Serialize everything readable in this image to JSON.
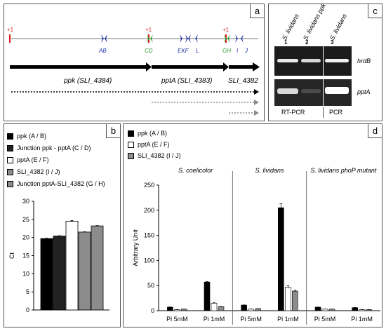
{
  "panels": {
    "a": "a",
    "b": "b",
    "c": "c",
    "d": "d"
  },
  "panel_a": {
    "tss_label": "+1",
    "primer_groups": [
      "AB",
      "CD",
      "EKF",
      "L",
      "GH",
      "I",
      "J"
    ],
    "genes": [
      "ppk (SLI_4384)",
      "pptA (SLI_4383)",
      "SLI_4382"
    ],
    "colors": {
      "tss": "#e21a1a",
      "primer_blue": "#1f2fa8",
      "primer_green": "#2ca02c",
      "arrow": "#000000",
      "transcript_black": "#000000",
      "transcript_gray": "#8c8c8c"
    }
  },
  "panel_c": {
    "col_labels": [
      "S. lividans",
      "S. lividans ppk mutant",
      "S. lividans"
    ],
    "lane_numbers": [
      "1",
      "2",
      "3"
    ],
    "row_labels": [
      "hrdB",
      "pptA"
    ],
    "bottom_labels": [
      "RT-PCR",
      "PCR"
    ]
  },
  "panel_b": {
    "legend": [
      {
        "label": "ppk (A / B)",
        "color": "#000000"
      },
      {
        "label": "Junction ppk - pptA (C / D)",
        "color": "#222222"
      },
      {
        "label": "pptA (E / F)",
        "color": "#ffffff"
      },
      {
        "label": "SLI_4382 (I / J)",
        "color": "#8c8c8c"
      },
      {
        "label": "Junction pptA-SLI_4382 (G / H)",
        "color": "#8c8c8c"
      }
    ],
    "chart_data": {
      "type": "bar",
      "ylabel": "Ct",
      "ylim": [
        0,
        30
      ],
      "yticks": [
        "0",
        "5",
        "10",
        "15",
        "20",
        "25",
        "30"
      ],
      "values": [
        19.7,
        20.4,
        24.5,
        21.5,
        23.2
      ],
      "errors": [
        0.1,
        0.1,
        0.2,
        0.1,
        0.1
      ]
    }
  },
  "panel_d": {
    "legend": [
      {
        "label": "ppk (A / B)",
        "color": "#000000"
      },
      {
        "label": "pptA (E / F)",
        "color": "#ffffff"
      },
      {
        "label": "SLI_4382 (I / J)",
        "color": "#8c8c8c"
      }
    ],
    "chart_data": {
      "type": "bar",
      "ylabel": "Arbitrary Unit",
      "ylim": [
        0,
        250
      ],
      "yticks": [
        "0",
        "50",
        "100",
        "150",
        "200",
        "250"
      ],
      "groups": [
        {
          "title": "S. coelicolor",
          "conditions": [
            {
              "label": "Pi 5mM",
              "values": [
                7,
                2,
                3
              ],
              "errors": [
                0.5,
                0.3,
                0.3
              ]
            },
            {
              "label": "Pi 1mM",
              "values": [
                57,
                15,
                8
              ],
              "errors": [
                1.0,
                0.8,
                0.5
              ]
            }
          ]
        },
        {
          "title": "S. lividans",
          "conditions": [
            {
              "label": "Pi 5mM",
              "values": [
                11,
                3,
                4
              ],
              "errors": [
                0.5,
                0.3,
                0.3
              ]
            },
            {
              "label": "Pi 1mM",
              "values": [
                205,
                47,
                39
              ],
              "errors": [
                8,
                2.5,
                1.5
              ]
            }
          ]
        },
        {
          "title": "S. lividans phoP mutant",
          "conditions": [
            {
              "label": "Pi 5mM",
              "values": [
                7,
                3,
                3
              ],
              "errors": [
                0.3,
                0.2,
                0.2
              ]
            },
            {
              "label": "Pi 1mM",
              "values": [
                6,
                2,
                2
              ],
              "errors": [
                0.3,
                0.2,
                0.2
              ]
            }
          ]
        }
      ]
    }
  }
}
